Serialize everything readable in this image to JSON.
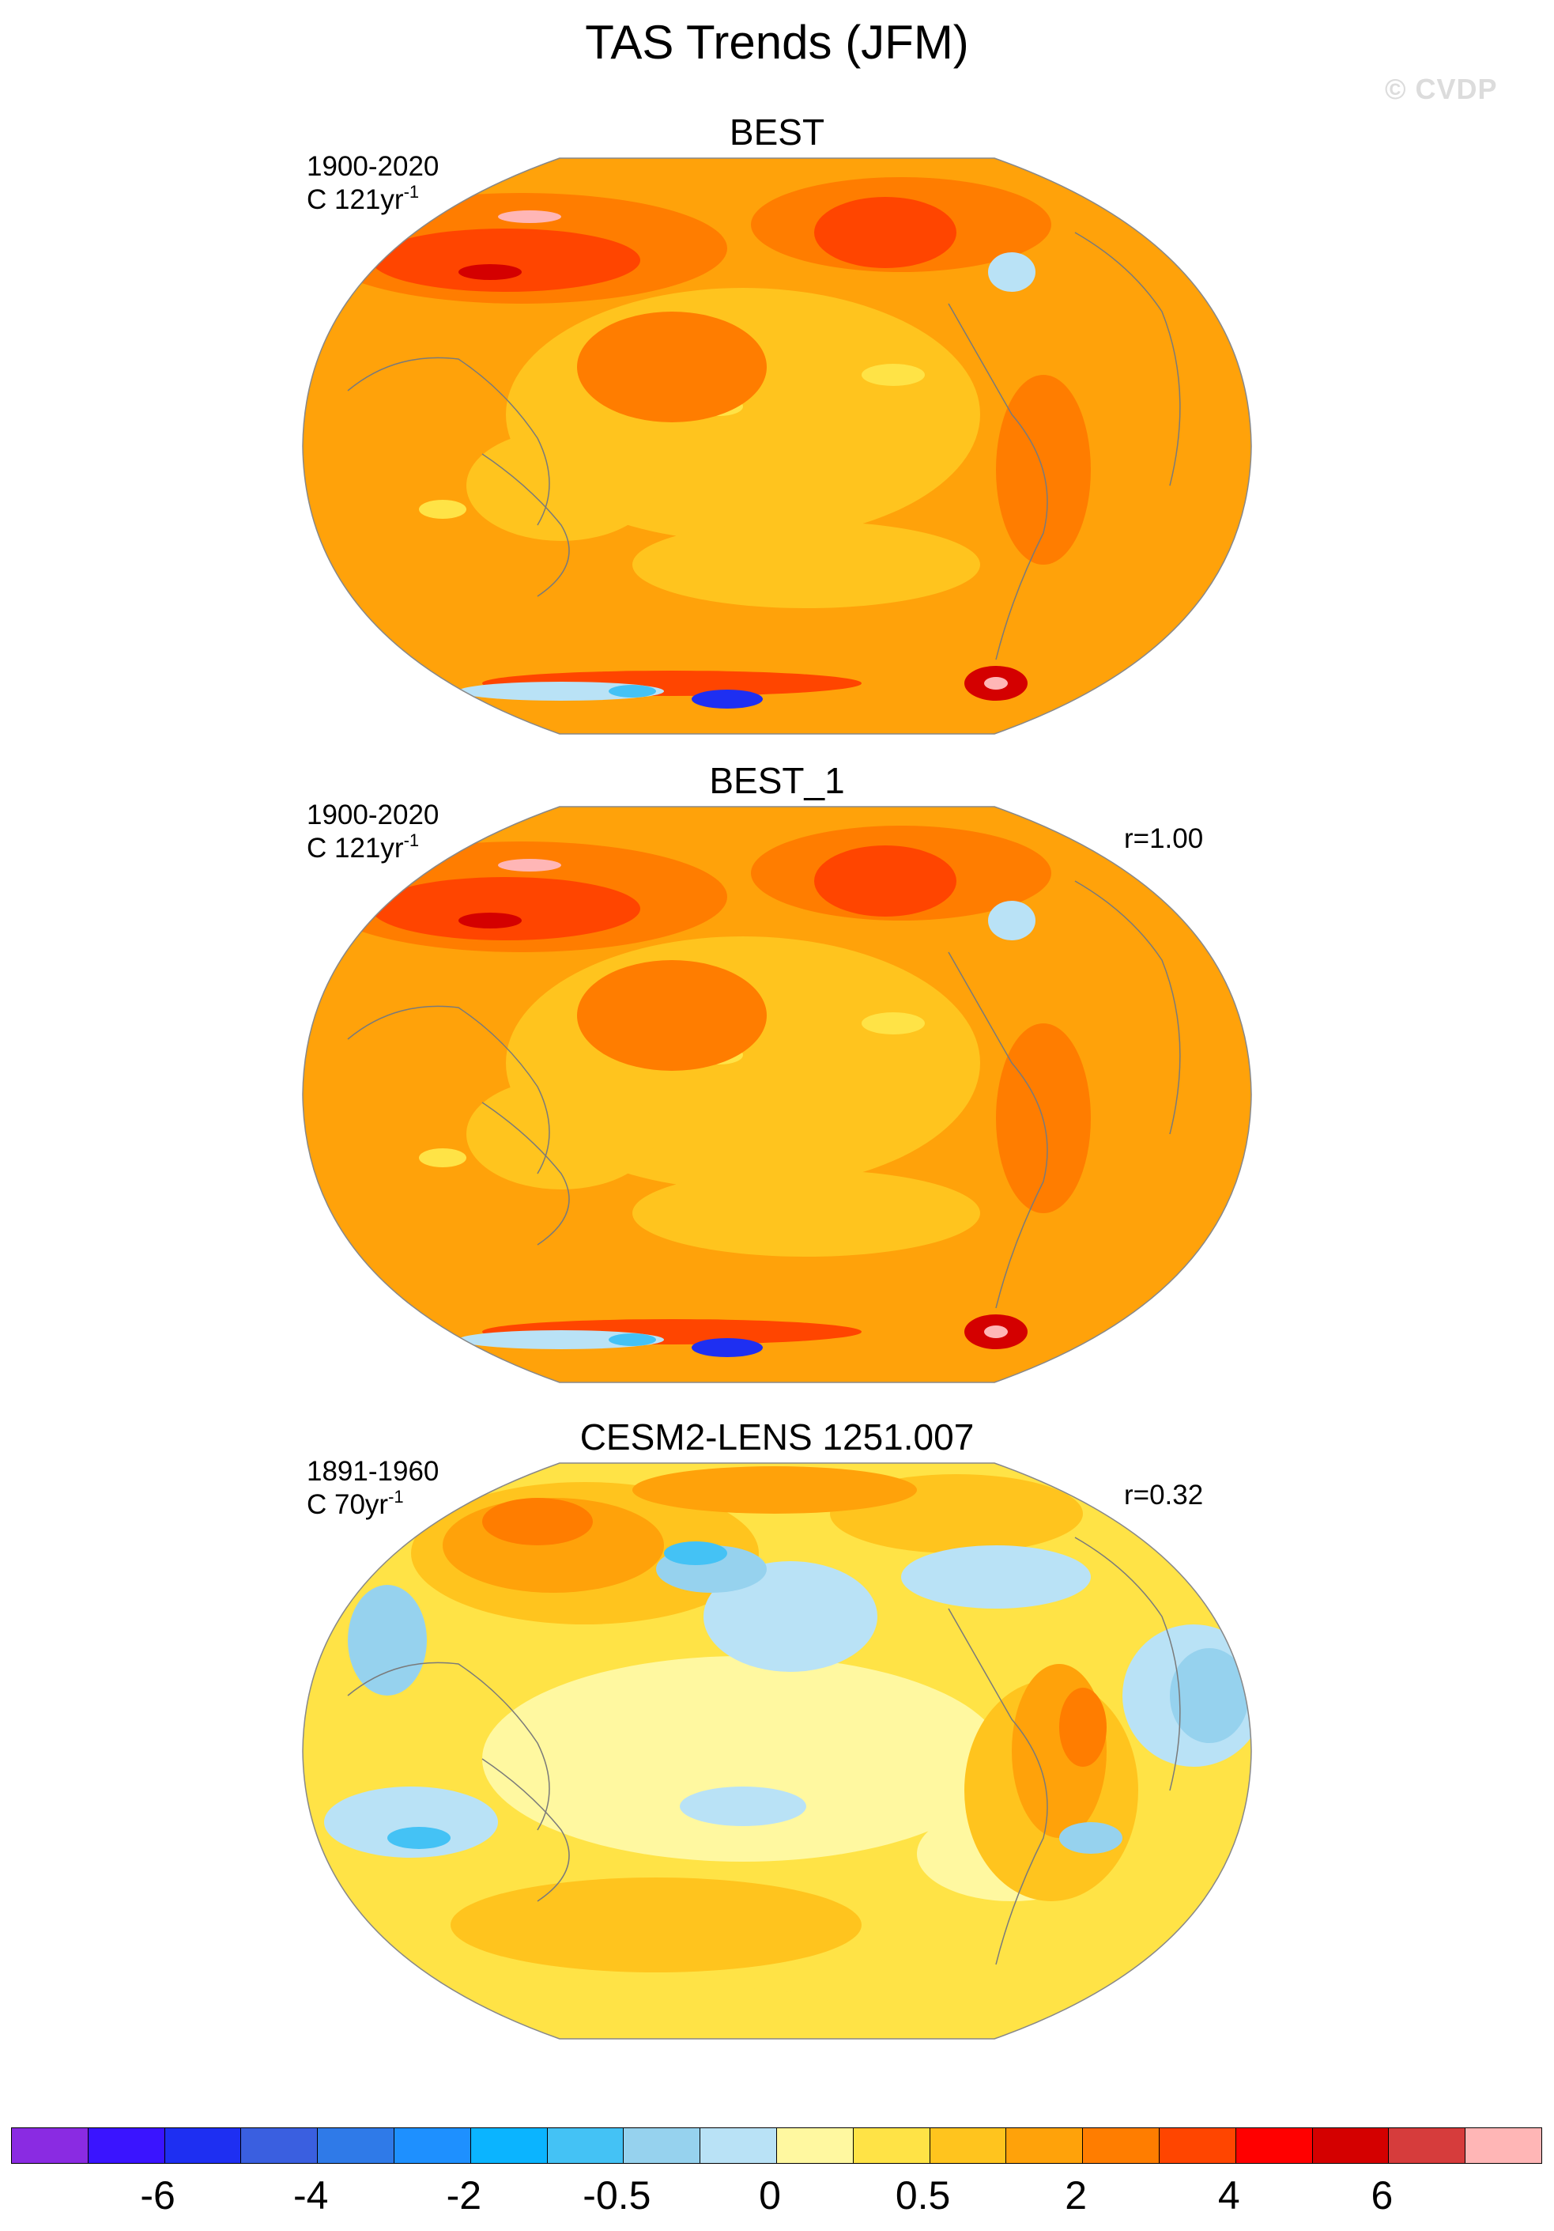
{
  "figure": {
    "title": "TAS Trends (JFM)",
    "watermark": "© CVDP"
  },
  "panels": [
    {
      "name": "BEST",
      "period": "1900-2020",
      "units_prefix": "C 121yr",
      "units_exp": "-1",
      "corr": "",
      "style": "obs"
    },
    {
      "name": "BEST_1",
      "period": "1900-2020",
      "units_prefix": "C 121yr",
      "units_exp": "-1",
      "corr": "r=1.00",
      "style": "obs"
    },
    {
      "name": "CESM2-LENS 1251.007",
      "period": "1891-1960",
      "units_prefix": "C 70yr",
      "units_exp": "-1",
      "corr": "r=0.32",
      "style": "model"
    }
  ],
  "colorbar": {
    "colors": [
      "#8a2be2",
      "#3a14ff",
      "#1e2ff2",
      "#3a5fe0",
      "#2f7ae8",
      "#1e90ff",
      "#0bb4ff",
      "#44c2f5",
      "#96d2ee",
      "#b9e2f6",
      "#fff8a0",
      "#ffe346",
      "#ffc41e",
      "#ffa20a",
      "#ff7d00",
      "#ff4500",
      "#ff0000",
      "#d40000",
      "#d63c3c",
      "#ffb6b6"
    ],
    "labels": [
      "-6",
      "-4",
      "-2",
      "-0.5",
      "0",
      "0.5",
      "2",
      "4",
      "6"
    ]
  }
}
